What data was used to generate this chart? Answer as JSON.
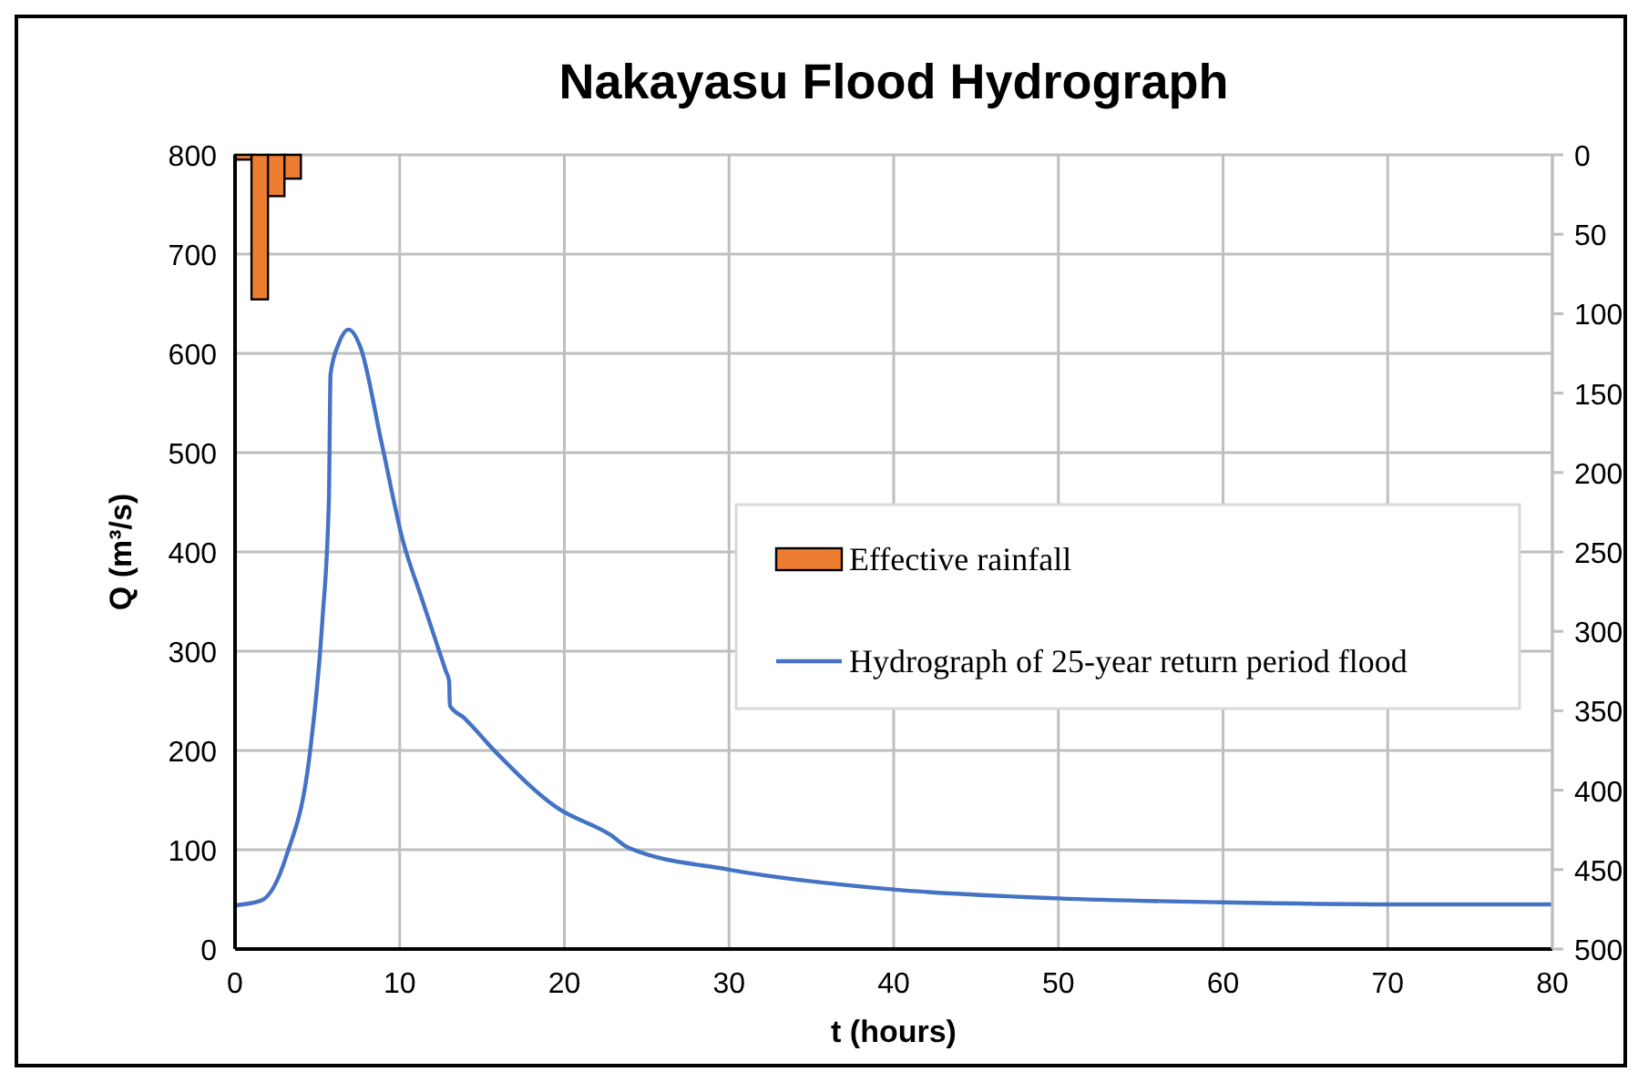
{
  "chart_data": {
    "type": "line",
    "title": "Nakayasu Flood Hydrograph",
    "xlabel": "t (hours)",
    "ylabel": "Q (m³/s)",
    "xlim": [
      0,
      80
    ],
    "xticks": [
      0,
      10,
      20,
      30,
      40,
      50,
      60,
      70,
      80
    ],
    "ylim": [
      0,
      800
    ],
    "yticks": [
      0,
      100,
      200,
      300,
      400,
      500,
      600,
      700,
      800
    ],
    "y2lim": [
      500,
      0
    ],
    "y2ticks": [
      0,
      50,
      100,
      150,
      200,
      250,
      300,
      350,
      400,
      450,
      500
    ],
    "grid": true,
    "legend": "right",
    "series": [
      {
        "name": "Effective rainfall",
        "type": "bar",
        "axis": "y2",
        "color": "#ed7d31",
        "x": [
          0.5,
          1.5,
          2.5,
          3.5
        ],
        "values": [
          3,
          91,
          26,
          15
        ]
      },
      {
        "name": "Hydrograph of 25-year return period flood",
        "color": "#4472c4",
        "x": [
          0,
          1.6,
          3.1,
          4.6,
          5.3,
          5.7,
          5.8,
          6.3,
          6.9,
          7.6,
          8.9,
          10.2,
          11.3,
          12.8,
          13.0,
          13.05,
          13.9,
          15.8,
          19.5,
          22.8,
          23.9,
          30,
          40,
          50,
          60,
          70,
          80
        ],
        "values": [
          44,
          49,
          93,
          205,
          330,
          454,
          579,
          610,
          624,
          607,
          510,
          411,
          355,
          280,
          270,
          245,
          233,
          199,
          143,
          115,
          102,
          80,
          60,
          51,
          47,
          45,
          45
        ]
      }
    ]
  }
}
